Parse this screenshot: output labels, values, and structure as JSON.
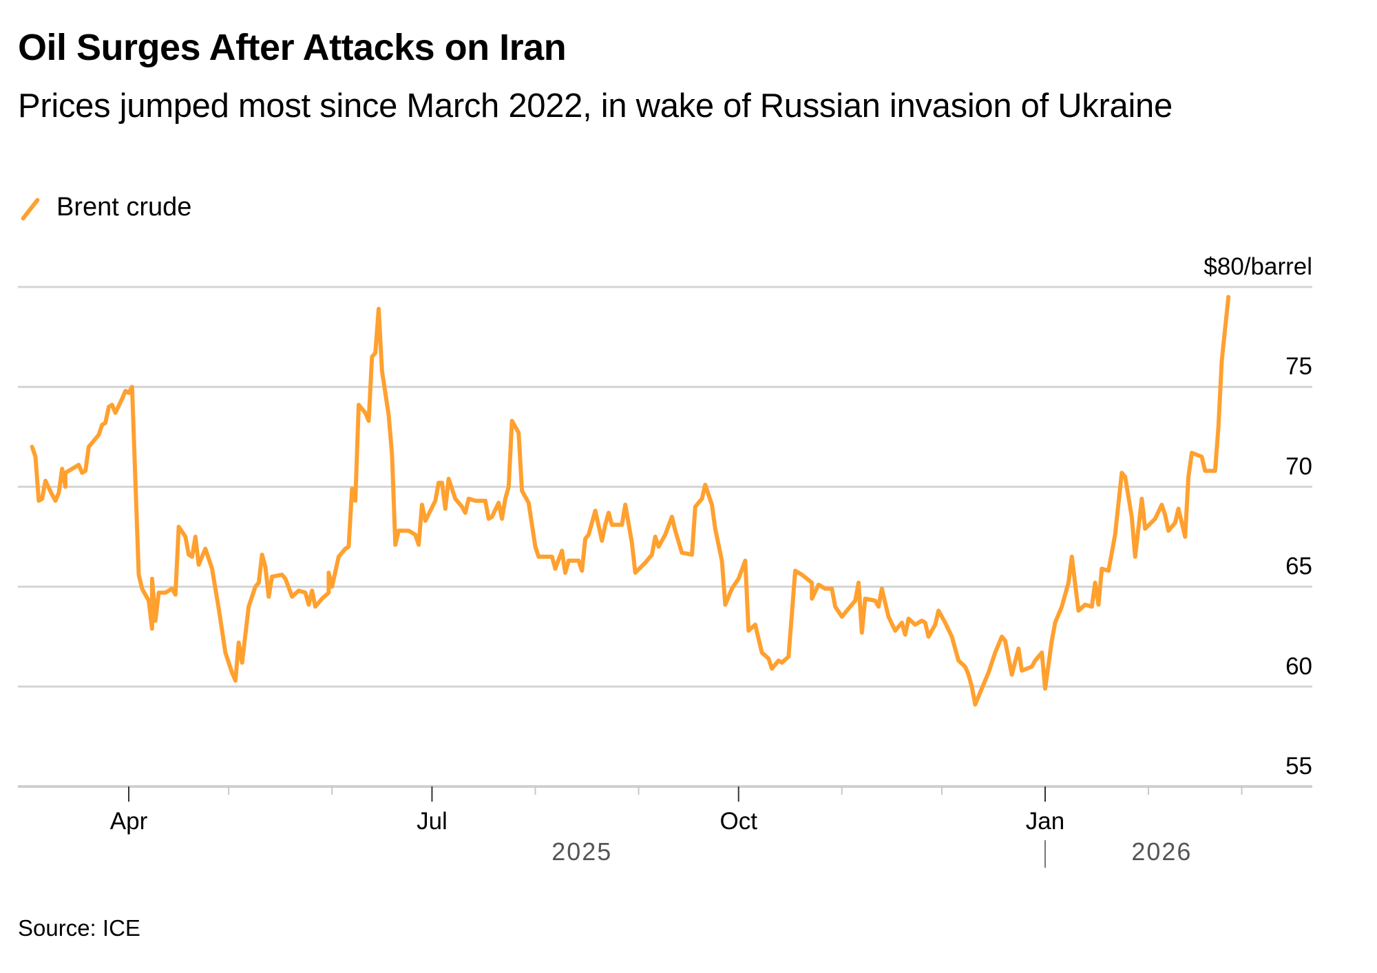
{
  "title": "Oil Surges After Attacks on Iran",
  "subtitle": "Prices jumped most since March 2022, in wake of Russian invasion of Ukraine",
  "legend": [
    {
      "label": "Brent crude",
      "color": "#ffa02f"
    }
  ],
  "source": "Source: ICE",
  "chart_data": {
    "type": "line",
    "title": "Oil Surges After Attacks on Iran",
    "subtitle": "Prices jumped most since March 2022, in wake of Russian invasion of Ukraine",
    "xlabel": "",
    "ylabel": "$/barrel",
    "y_unit_label": "$80/barrel",
    "ylim": [
      55,
      80
    ],
    "yticks": [
      55,
      60,
      65,
      70,
      75,
      80
    ],
    "ytick_labels": [
      "55",
      "60",
      "65",
      "70",
      "75",
      "$80/barrel"
    ],
    "xlim": [
      "2025-03-04",
      "2026-03-10"
    ],
    "xticks_major": [
      {
        "date": "2025-04-01",
        "label": "Apr"
      },
      {
        "date": "2025-07-01",
        "label": "Jul"
      },
      {
        "date": "2025-10-01",
        "label": "Oct"
      },
      {
        "date": "2026-01-01",
        "label": "Jan"
      }
    ],
    "xticks_minor": [
      "2025-05-01",
      "2025-06-01",
      "2025-08-01",
      "2025-09-01",
      "2025-11-01",
      "2025-12-01",
      "2026-02-01",
      "2026-03-01"
    ],
    "year_labels": [
      {
        "label": "2025",
        "center": "2025-08-15"
      },
      {
        "label": "2026",
        "center": "2026-02-05",
        "divider": "2026-01-01"
      }
    ],
    "grid": true,
    "legend_position": "top-left",
    "series": [
      {
        "name": "Brent crude",
        "color": "#ffa02f",
        "points": [
          [
            "2025-03-03",
            72.0
          ],
          [
            "2025-03-04",
            71.5
          ],
          [
            "2025-03-05",
            69.3
          ],
          [
            "2025-03-06",
            69.4
          ],
          [
            "2025-03-07",
            70.3
          ],
          [
            "2025-03-09",
            69.6
          ],
          [
            "2025-03-10",
            69.3
          ],
          [
            "2025-03-11",
            69.7
          ],
          [
            "2025-03-12",
            70.9
          ],
          [
            "2025-03-13",
            70.0
          ],
          [
            "2025-03-13",
            70.7
          ],
          [
            "2025-03-15",
            70.9
          ],
          [
            "2025-03-17",
            71.1
          ],
          [
            "2025-03-18",
            70.7
          ],
          [
            "2025-03-19",
            70.8
          ],
          [
            "2025-03-20",
            72.0
          ],
          [
            "2025-03-21",
            72.2
          ],
          [
            "2025-03-23",
            72.6
          ],
          [
            "2025-03-24",
            73.1
          ],
          [
            "2025-03-25",
            73.2
          ],
          [
            "2025-03-26",
            74.0
          ],
          [
            "2025-03-27",
            74.1
          ],
          [
            "2025-03-28",
            73.7
          ],
          [
            "2025-03-30",
            74.4
          ],
          [
            "2025-03-31",
            74.8
          ],
          [
            "2025-04-01",
            74.7
          ],
          [
            "2025-04-02",
            75.0
          ],
          [
            "2025-04-04",
            65.6
          ],
          [
            "2025-04-05",
            64.9
          ],
          [
            "2025-04-07",
            64.3
          ],
          [
            "2025-04-08",
            62.9
          ],
          [
            "2025-04-08",
            65.4
          ],
          [
            "2025-04-09",
            63.3
          ],
          [
            "2025-04-10",
            64.7
          ],
          [
            "2025-04-12",
            64.7
          ],
          [
            "2025-04-14",
            64.9
          ],
          [
            "2025-04-15",
            64.6
          ],
          [
            "2025-04-16",
            68.0
          ],
          [
            "2025-04-18",
            67.5
          ],
          [
            "2025-04-19",
            66.6
          ],
          [
            "2025-04-20",
            66.5
          ],
          [
            "2025-04-21",
            67.5
          ],
          [
            "2025-04-22",
            66.1
          ],
          [
            "2025-04-24",
            66.9
          ],
          [
            "2025-04-26",
            65.9
          ],
          [
            "2025-04-28",
            63.9
          ],
          [
            "2025-04-30",
            61.7
          ],
          [
            "2025-05-02",
            60.7
          ],
          [
            "2025-05-03",
            60.3
          ],
          [
            "2025-05-04",
            62.2
          ],
          [
            "2025-05-05",
            61.2
          ],
          [
            "2025-05-07",
            64.0
          ],
          [
            "2025-05-09",
            65.0
          ],
          [
            "2025-05-10",
            65.2
          ],
          [
            "2025-05-11",
            66.6
          ],
          [
            "2025-05-12",
            66.0
          ],
          [
            "2025-05-13",
            64.5
          ],
          [
            "2025-05-14",
            65.5
          ],
          [
            "2025-05-17",
            65.6
          ],
          [
            "2025-05-18",
            65.4
          ],
          [
            "2025-05-20",
            64.5
          ],
          [
            "2025-05-22",
            64.8
          ],
          [
            "2025-05-24",
            64.7
          ],
          [
            "2025-05-25",
            64.1
          ],
          [
            "2025-05-26",
            64.8
          ],
          [
            "2025-05-27",
            64.0
          ],
          [
            "2025-05-29",
            64.4
          ],
          [
            "2025-05-31",
            64.7
          ],
          [
            "2025-05-31",
            65.7
          ],
          [
            "2025-06-01",
            65.0
          ],
          [
            "2025-06-03",
            66.5
          ],
          [
            "2025-06-05",
            66.9
          ],
          [
            "2025-06-06",
            67.0
          ],
          [
            "2025-06-07",
            69.9
          ],
          [
            "2025-06-08",
            69.3
          ],
          [
            "2025-06-09",
            74.1
          ],
          [
            "2025-06-11",
            73.7
          ],
          [
            "2025-06-12",
            73.3
          ],
          [
            "2025-06-13",
            76.5
          ],
          [
            "2025-06-14",
            76.7
          ],
          [
            "2025-06-15",
            78.9
          ],
          [
            "2025-06-16",
            75.8
          ],
          [
            "2025-06-18",
            73.6
          ],
          [
            "2025-06-19",
            71.6
          ],
          [
            "2025-06-20",
            67.1
          ],
          [
            "2025-06-21",
            67.8
          ],
          [
            "2025-06-24",
            67.8
          ],
          [
            "2025-06-26",
            67.6
          ],
          [
            "2025-06-27",
            67.1
          ],
          [
            "2025-06-28",
            69.1
          ],
          [
            "2025-06-29",
            68.3
          ],
          [
            "2025-07-02",
            69.3
          ],
          [
            "2025-07-03",
            70.2
          ],
          [
            "2025-07-04",
            70.2
          ],
          [
            "2025-07-05",
            68.9
          ],
          [
            "2025-07-06",
            70.4
          ],
          [
            "2025-07-08",
            69.4
          ],
          [
            "2025-07-10",
            69.0
          ],
          [
            "2025-07-11",
            68.7
          ],
          [
            "2025-07-12",
            69.4
          ],
          [
            "2025-07-14",
            69.3
          ],
          [
            "2025-07-17",
            69.3
          ],
          [
            "2025-07-18",
            68.4
          ],
          [
            "2025-07-19",
            68.5
          ],
          [
            "2025-07-21",
            69.2
          ],
          [
            "2025-07-22",
            68.4
          ],
          [
            "2025-07-23",
            69.4
          ],
          [
            "2025-07-24",
            70.0
          ],
          [
            "2025-07-25",
            73.3
          ],
          [
            "2025-07-27",
            72.7
          ],
          [
            "2025-07-28",
            69.8
          ],
          [
            "2025-07-30",
            69.2
          ],
          [
            "2025-08-01",
            67.0
          ],
          [
            "2025-08-02",
            66.5
          ],
          [
            "2025-08-06",
            66.5
          ],
          [
            "2025-08-07",
            65.9
          ],
          [
            "2025-08-09",
            66.8
          ],
          [
            "2025-08-10",
            65.7
          ],
          [
            "2025-08-11",
            66.3
          ],
          [
            "2025-08-14",
            66.3
          ],
          [
            "2025-08-15",
            65.8
          ],
          [
            "2025-08-16",
            67.4
          ],
          [
            "2025-08-17",
            67.6
          ],
          [
            "2025-08-19",
            68.8
          ],
          [
            "2025-08-21",
            67.3
          ],
          [
            "2025-08-22",
            68.1
          ],
          [
            "2025-08-23",
            68.7
          ],
          [
            "2025-08-24",
            68.1
          ],
          [
            "2025-08-27",
            68.1
          ],
          [
            "2025-08-28",
            69.1
          ],
          [
            "2025-08-30",
            67.2
          ],
          [
            "2025-08-31",
            65.7
          ],
          [
            "2025-09-03",
            66.2
          ],
          [
            "2025-09-05",
            66.6
          ],
          [
            "2025-09-06",
            67.5
          ],
          [
            "2025-09-07",
            67.0
          ],
          [
            "2025-09-09",
            67.6
          ],
          [
            "2025-09-11",
            68.5
          ],
          [
            "2025-09-12",
            67.8
          ],
          [
            "2025-09-14",
            66.7
          ],
          [
            "2025-09-17",
            66.6
          ],
          [
            "2025-09-18",
            69.0
          ],
          [
            "2025-09-20",
            69.4
          ],
          [
            "2025-09-21",
            70.1
          ],
          [
            "2025-09-23",
            69.1
          ],
          [
            "2025-09-24",
            67.9
          ],
          [
            "2025-09-26",
            66.3
          ],
          [
            "2025-09-27",
            64.1
          ],
          [
            "2025-09-29",
            64.9
          ],
          [
            "2025-10-01",
            65.4
          ],
          [
            "2025-10-03",
            66.3
          ],
          [
            "2025-10-04",
            62.8
          ],
          [
            "2025-10-06",
            63.1
          ],
          [
            "2025-10-08",
            61.7
          ],
          [
            "2025-10-10",
            61.4
          ],
          [
            "2025-10-11",
            60.9
          ],
          [
            "2025-10-13",
            61.3
          ],
          [
            "2025-10-14",
            61.2
          ],
          [
            "2025-10-16",
            61.5
          ],
          [
            "2025-10-18",
            65.8
          ],
          [
            "2025-10-20",
            65.6
          ],
          [
            "2025-10-23",
            65.2
          ],
          [
            "2025-10-23",
            64.4
          ],
          [
            "2025-10-25",
            65.1
          ],
          [
            "2025-10-27",
            64.9
          ],
          [
            "2025-10-29",
            64.9
          ],
          [
            "2025-10-30",
            64.0
          ],
          [
            "2025-11-01",
            63.5
          ],
          [
            "2025-11-03",
            63.9
          ],
          [
            "2025-11-05",
            64.3
          ],
          [
            "2025-11-06",
            65.2
          ],
          [
            "2025-11-07",
            62.7
          ],
          [
            "2025-11-08",
            64.4
          ],
          [
            "2025-11-11",
            64.3
          ],
          [
            "2025-11-12",
            64.0
          ],
          [
            "2025-11-13",
            64.9
          ],
          [
            "2025-11-15",
            63.5
          ],
          [
            "2025-11-17",
            62.8
          ],
          [
            "2025-11-19",
            63.2
          ],
          [
            "2025-11-20",
            62.6
          ],
          [
            "2025-11-21",
            63.4
          ],
          [
            "2025-11-23",
            63.1
          ],
          [
            "2025-11-25",
            63.3
          ],
          [
            "2025-11-26",
            63.2
          ],
          [
            "2025-11-27",
            62.5
          ],
          [
            "2025-11-29",
            63.1
          ],
          [
            "2025-11-30",
            63.8
          ],
          [
            "2025-12-02",
            63.2
          ],
          [
            "2025-12-04",
            62.5
          ],
          [
            "2025-12-05",
            61.9
          ],
          [
            "2025-12-06",
            61.3
          ],
          [
            "2025-12-08",
            61.0
          ],
          [
            "2025-12-09",
            60.6
          ],
          [
            "2025-12-10",
            60.0
          ],
          [
            "2025-12-11",
            59.1
          ],
          [
            "2025-12-13",
            59.9
          ],
          [
            "2025-12-15",
            60.7
          ],
          [
            "2025-12-17",
            61.7
          ],
          [
            "2025-12-19",
            62.5
          ],
          [
            "2025-12-20",
            62.3
          ],
          [
            "2025-12-22",
            60.6
          ],
          [
            "2025-12-24",
            61.9
          ],
          [
            "2025-12-25",
            60.8
          ],
          [
            "2025-12-28",
            61.0
          ],
          [
            "2025-12-29",
            61.3
          ],
          [
            "2025-12-31",
            61.7
          ],
          [
            "2026-01-01",
            59.9
          ],
          [
            "2026-01-03",
            62.3
          ],
          [
            "2026-01-04",
            63.2
          ],
          [
            "2026-01-06",
            64.0
          ],
          [
            "2026-01-08",
            65.2
          ],
          [
            "2026-01-09",
            66.5
          ],
          [
            "2026-01-11",
            63.8
          ],
          [
            "2026-01-13",
            64.1
          ],
          [
            "2026-01-15",
            64.0
          ],
          [
            "2026-01-16",
            65.2
          ],
          [
            "2026-01-17",
            64.1
          ],
          [
            "2026-01-18",
            65.9
          ],
          [
            "2026-01-20",
            65.8
          ],
          [
            "2026-01-22",
            67.6
          ],
          [
            "2026-01-24",
            70.7
          ],
          [
            "2026-01-25",
            70.5
          ],
          [
            "2026-01-27",
            68.5
          ],
          [
            "2026-01-28",
            66.5
          ],
          [
            "2026-01-30",
            69.4
          ],
          [
            "2026-01-31",
            67.9
          ],
          [
            "2026-02-03",
            68.4
          ],
          [
            "2026-02-05",
            69.1
          ],
          [
            "2026-02-06",
            68.6
          ],
          [
            "2026-02-07",
            67.8
          ],
          [
            "2026-02-09",
            68.2
          ],
          [
            "2026-02-10",
            68.9
          ],
          [
            "2026-02-12",
            67.5
          ],
          [
            "2026-02-13",
            70.5
          ],
          [
            "2026-02-14",
            71.7
          ],
          [
            "2026-02-17",
            71.5
          ],
          [
            "2026-02-18",
            70.8
          ],
          [
            "2026-02-20",
            70.8
          ],
          [
            "2026-02-21",
            70.8
          ],
          [
            "2026-02-22",
            73.0
          ],
          [
            "2026-02-23",
            76.3
          ],
          [
            "2026-02-25",
            79.5
          ]
        ]
      }
    ]
  }
}
